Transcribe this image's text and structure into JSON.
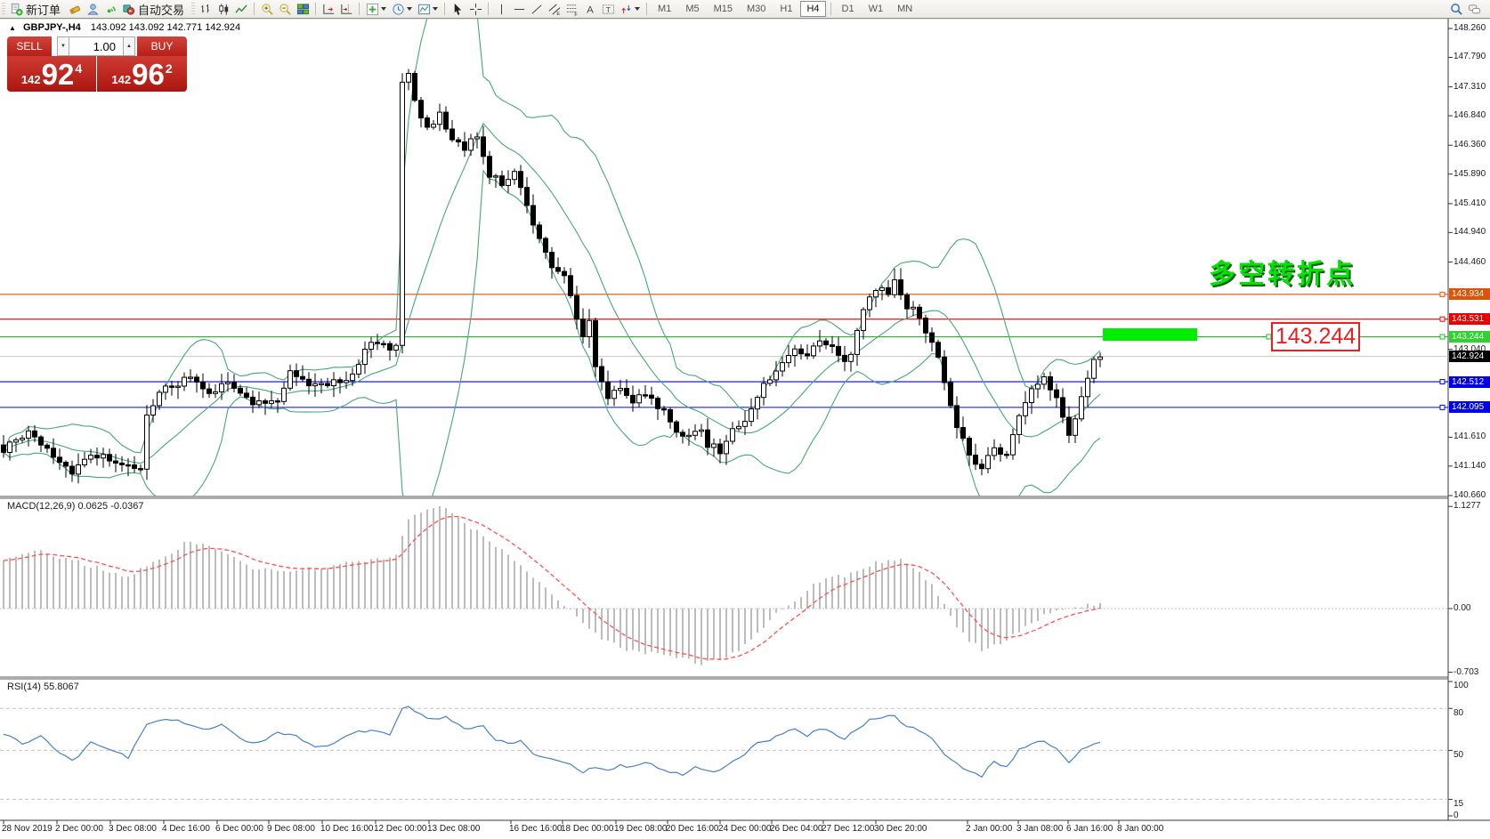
{
  "toolbar": {
    "new_order_label": "新订单",
    "autotrade_label": "自动交易",
    "timeframes": [
      "M1",
      "M5",
      "M15",
      "M30",
      "H1",
      "H4",
      "D1",
      "W1",
      "MN"
    ],
    "active_timeframe": "H4"
  },
  "quote_bar": {
    "symbol": "GBPJPY-,H4",
    "ohlc_text": "143.092 143.092 142.771 142.924"
  },
  "trade_panel": {
    "sell_label": "SELL",
    "buy_label": "BUY",
    "volume": "1.00",
    "sell_price": {
      "prefix": "142",
      "big": "92",
      "sup": "4"
    },
    "buy_price": {
      "prefix": "142",
      "big": "96",
      "sup": "2"
    },
    "accent": "#bf221b"
  },
  "annotations": {
    "turning_point": "多空转折点",
    "callout_price": "143.244",
    "highlight_color": "#00ef00"
  },
  "price_axis": {
    "ticks": [
      "148.260",
      "147.790",
      "147.310",
      "146.840",
      "146.360",
      "145.890",
      "145.410",
      "144.940",
      "144.460",
      "143.040",
      "141.610",
      "141.140",
      "140.660"
    ],
    "line_labels": [
      {
        "value": "143.934",
        "color": "#e05206"
      },
      {
        "value": "143.531",
        "color": "#ee0000"
      },
      {
        "value": "143.244",
        "color": "#2fd32f"
      },
      {
        "value": "142.924",
        "color": "#000000"
      },
      {
        "value": "142.512",
        "color": "#0000ee"
      },
      {
        "value": "142.095",
        "color": "#0000ee"
      }
    ]
  },
  "time_axis": [
    [
      2,
      "28 Nov 2019"
    ],
    [
      62,
      "2 Dec 00:00"
    ],
    [
      122,
      "3 Dec 08:00"
    ],
    [
      182,
      "4 Dec 16:00"
    ],
    [
      242,
      "6 Dec 00:00"
    ],
    [
      300,
      "9 Dec 08:00"
    ],
    [
      360,
      "10 Dec 16:00"
    ],
    [
      420,
      "12 Dec 00:00"
    ],
    [
      480,
      "13 Dec 08:00"
    ],
    [
      572,
      "16 Dec 16:00"
    ],
    [
      630,
      "18 Dec 00:00"
    ],
    [
      690,
      "19 Dec 08:00"
    ],
    [
      748,
      "20 Dec 16:00"
    ],
    [
      807,
      "24 Dec 00:00"
    ],
    [
      865,
      "26 Dec 04:00"
    ],
    [
      923,
      "27 Dec 12:00"
    ],
    [
      982,
      "30 Dec 20:00"
    ],
    [
      1085,
      "2 Jan 00:00"
    ],
    [
      1142,
      "3 Jan 08:00"
    ],
    [
      1198,
      "6 Jan 16:00"
    ],
    [
      1255,
      "8 Jan 00:00"
    ]
  ],
  "chart_data": [
    {
      "type": "candlestick",
      "symbol": "GBPJPY",
      "timeframe": "H4",
      "title": "GBPJPY-,H4",
      "price_range": [
        140.66,
        148.26
      ],
      "bars_visible": 177,
      "overlay": {
        "name": "Bollinger Bands",
        "color": "#45a878"
      },
      "levels": [
        {
          "price": 143.934,
          "color": "#e05206",
          "style": "solid"
        },
        {
          "price": 143.531,
          "color": "#ee0000",
          "style": "solid"
        },
        {
          "price": 143.244,
          "color": "#10c020",
          "style": "solid"
        },
        {
          "price": 142.924,
          "color": "#c8c8c8",
          "style": "bid-line"
        },
        {
          "price": 142.512,
          "color": "#0000ee",
          "style": "solid"
        },
        {
          "price": 142.095,
          "color": "#0000ee",
          "style": "solid"
        }
      ],
      "highlight_bar": {
        "price": 143.244,
        "from_bar": 176,
        "note": "green rectangle over 143.244 zone"
      },
      "close_keyframes": [
        [
          0,
          141.4
        ],
        [
          4,
          141.7
        ],
        [
          8,
          141.3
        ],
        [
          11,
          141.05
        ],
        [
          14,
          141.35
        ],
        [
          18,
          141.2
        ],
        [
          22,
          141.1
        ],
        [
          23,
          141.95
        ],
        [
          26,
          142.45
        ],
        [
          30,
          142.55
        ],
        [
          33,
          142.3
        ],
        [
          36,
          142.5
        ],
        [
          40,
          142.15
        ],
        [
          44,
          142.25
        ],
        [
          46,
          142.65
        ],
        [
          48,
          142.5
        ],
        [
          52,
          142.45
        ],
        [
          56,
          142.6
        ],
        [
          58,
          143.05
        ],
        [
          60,
          143.15
        ],
        [
          62,
          143.05
        ],
        [
          63,
          143.1
        ],
        [
          64,
          147.4
        ],
        [
          65,
          147.55
        ],
        [
          66,
          147.1
        ],
        [
          68,
          146.6
        ],
        [
          70,
          146.85
        ],
        [
          72,
          146.45
        ],
        [
          74,
          146.3
        ],
        [
          76,
          146.55
        ],
        [
          78,
          145.9
        ],
        [
          80,
          145.75
        ],
        [
          82,
          145.95
        ],
        [
          84,
          145.35
        ],
        [
          86,
          144.8
        ],
        [
          88,
          144.35
        ],
        [
          90,
          144.2
        ],
        [
          92,
          143.55
        ],
        [
          93,
          143.3
        ],
        [
          94,
          143.45
        ],
        [
          95,
          142.7
        ],
        [
          97,
          142.3
        ],
        [
          99,
          142.45
        ],
        [
          101,
          142.2
        ],
        [
          103,
          142.35
        ],
        [
          105,
          142.1
        ],
        [
          107,
          141.9
        ],
        [
          108,
          141.75
        ],
        [
          110,
          141.6
        ],
        [
          112,
          141.75
        ],
        [
          113,
          141.5
        ],
        [
          115,
          141.4
        ],
        [
          117,
          141.7
        ],
        [
          119,
          141.85
        ],
        [
          121,
          142.3
        ],
        [
          123,
          142.6
        ],
        [
          125,
          142.85
        ],
        [
          127,
          143.1
        ],
        [
          129,
          142.9
        ],
        [
          131,
          143.2
        ],
        [
          133,
          143.05
        ],
        [
          135,
          142.85
        ],
        [
          136,
          143.0
        ],
        [
          138,
          143.7
        ],
        [
          139,
          143.95
        ],
        [
          141,
          144.1
        ],
        [
          142,
          143.9
        ],
        [
          143,
          144.15
        ],
        [
          144,
          143.95
        ],
        [
          145,
          143.75
        ],
        [
          147,
          143.6
        ],
        [
          148,
          143.3
        ],
        [
          150,
          142.9
        ],
        [
          151,
          142.45
        ],
        [
          153,
          141.8
        ],
        [
          155,
          141.3
        ],
        [
          157,
          141.1
        ],
        [
          159,
          141.45
        ],
        [
          161,
          141.3
        ],
        [
          163,
          142.0
        ],
        [
          165,
          142.45
        ],
        [
          167,
          142.55
        ],
        [
          169,
          142.3
        ],
        [
          171,
          141.6
        ],
        [
          172,
          141.9
        ],
        [
          173,
          142.3
        ],
        [
          174,
          142.6
        ],
        [
          175,
          142.85
        ],
        [
          176,
          142.92
        ]
      ]
    },
    {
      "type": "macd",
      "label": "MACD(12,26,9)",
      "label_text": "MACD(12,26,9) 0.0625 -0.0367",
      "macd_value": 0.0625,
      "signal_value": -0.0367,
      "scale_ticks": [
        1.1277,
        0.0,
        -0.703
      ],
      "histogram_color": "#a0a0a0",
      "signal_color": "#ff5050",
      "keyframes": [
        [
          0,
          0.55
        ],
        [
          5,
          0.65
        ],
        [
          10,
          0.55
        ],
        [
          15,
          0.45
        ],
        [
          20,
          0.35
        ],
        [
          25,
          0.55
        ],
        [
          30,
          0.75
        ],
        [
          33,
          0.7
        ],
        [
          36,
          0.6
        ],
        [
          40,
          0.45
        ],
        [
          45,
          0.4
        ],
        [
          50,
          0.45
        ],
        [
          55,
          0.5
        ],
        [
          60,
          0.55
        ],
        [
          63,
          0.6
        ],
        [
          65,
          1.0
        ],
        [
          68,
          1.12
        ],
        [
          71,
          1.1
        ],
        [
          74,
          0.95
        ],
        [
          78,
          0.75
        ],
        [
          82,
          0.55
        ],
        [
          86,
          0.3
        ],
        [
          90,
          0.05
        ],
        [
          93,
          -0.15
        ],
        [
          96,
          -0.35
        ],
        [
          100,
          -0.45
        ],
        [
          104,
          -0.5
        ],
        [
          108,
          -0.55
        ],
        [
          112,
          -0.6
        ],
        [
          116,
          -0.55
        ],
        [
          119,
          -0.4
        ],
        [
          122,
          -0.2
        ],
        [
          125,
          0.0
        ],
        [
          128,
          0.15
        ],
        [
          131,
          0.3
        ],
        [
          134,
          0.35
        ],
        [
          137,
          0.4
        ],
        [
          140,
          0.5
        ],
        [
          143,
          0.55
        ],
        [
          145,
          0.5
        ],
        [
          147,
          0.4
        ],
        [
          149,
          0.25
        ],
        [
          151,
          0.05
        ],
        [
          153,
          -0.2
        ],
        [
          155,
          -0.35
        ],
        [
          157,
          -0.45
        ],
        [
          159,
          -0.4
        ],
        [
          161,
          -0.35
        ],
        [
          163,
          -0.25
        ],
        [
          165,
          -0.15
        ],
        [
          168,
          -0.05
        ],
        [
          171,
          0.0
        ],
        [
          174,
          0.04
        ],
        [
          176,
          0.0625
        ]
      ]
    },
    {
      "type": "rsi",
      "label": "RSI(14)",
      "label_text": "RSI(14) 55.8067",
      "current_value": 55.8067,
      "levels": [
        80,
        50,
        15
      ],
      "scale_ticks": [
        100,
        80,
        50,
        15,
        0
      ],
      "line_color": "#4580c8",
      "keyframes": [
        [
          0,
          62
        ],
        [
          3,
          55
        ],
        [
          6,
          60
        ],
        [
          9,
          48
        ],
        [
          11,
          42
        ],
        [
          14,
          55
        ],
        [
          17,
          50
        ],
        [
          20,
          45
        ],
        [
          23,
          68
        ],
        [
          26,
          72
        ],
        [
          29,
          70
        ],
        [
          32,
          65
        ],
        [
          35,
          68
        ],
        [
          38,
          58
        ],
        [
          41,
          55
        ],
        [
          44,
          62
        ],
        [
          47,
          60
        ],
        [
          50,
          52
        ],
        [
          53,
          55
        ],
        [
          56,
          62
        ],
        [
          59,
          65
        ],
        [
          62,
          60
        ],
        [
          64,
          80
        ],
        [
          65,
          82
        ],
        [
          67,
          75
        ],
        [
          69,
          72
        ],
        [
          71,
          74
        ],
        [
          73,
          68
        ],
        [
          75,
          65
        ],
        [
          77,
          68
        ],
        [
          79,
          58
        ],
        [
          81,
          55
        ],
        [
          83,
          57
        ],
        [
          85,
          48
        ],
        [
          87,
          44
        ],
        [
          89,
          42
        ],
        [
          91,
          40
        ],
        [
          93,
          35
        ],
        [
          95,
          38
        ],
        [
          97,
          36
        ],
        [
          99,
          40
        ],
        [
          101,
          38
        ],
        [
          103,
          42
        ],
        [
          105,
          38
        ],
        [
          107,
          35
        ],
        [
          109,
          33
        ],
        [
          111,
          38
        ],
        [
          113,
          35
        ],
        [
          115,
          36
        ],
        [
          117,
          42
        ],
        [
          119,
          48
        ],
        [
          121,
          55
        ],
        [
          123,
          58
        ],
        [
          125,
          62
        ],
        [
          127,
          65
        ],
        [
          129,
          60
        ],
        [
          131,
          66
        ],
        [
          133,
          62
        ],
        [
          135,
          58
        ],
        [
          137,
          65
        ],
        [
          139,
          72
        ],
        [
          141,
          74
        ],
        [
          143,
          75
        ],
        [
          144,
          70
        ],
        [
          145,
          68
        ],
        [
          147,
          64
        ],
        [
          149,
          58
        ],
        [
          151,
          48
        ],
        [
          153,
          40
        ],
        [
          155,
          35
        ],
        [
          157,
          32
        ],
        [
          159,
          42
        ],
        [
          161,
          38
        ],
        [
          163,
          50
        ],
        [
          165,
          55
        ],
        [
          167,
          57
        ],
        [
          169,
          52
        ],
        [
          171,
          42
        ],
        [
          173,
          50
        ],
        [
          175,
          55
        ],
        [
          176,
          55.8
        ]
      ]
    }
  ]
}
